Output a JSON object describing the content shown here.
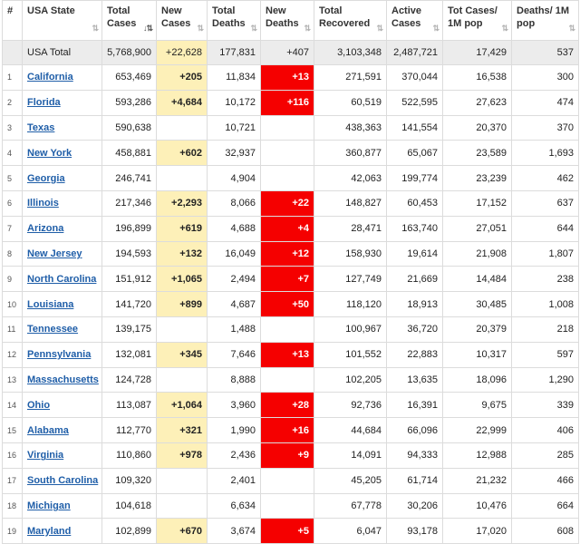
{
  "headers": [
    {
      "label": "#",
      "sortable": false
    },
    {
      "label": "USA State",
      "sortable": true
    },
    {
      "label": "Total Cases",
      "sortable": true,
      "active": true
    },
    {
      "label": "New Cases",
      "sortable": true
    },
    {
      "label": "Total Deaths",
      "sortable": true
    },
    {
      "label": "New Deaths",
      "sortable": true
    },
    {
      "label": "Total Recovered",
      "sortable": true
    },
    {
      "label": "Active Cases",
      "sortable": true
    },
    {
      "label": "Tot Cases/ 1M pop",
      "sortable": true
    },
    {
      "label": "Deaths/ 1M pop",
      "sortable": true
    }
  ],
  "sort_glyph": "⇅",
  "sort_glyph_active": "↓⇅",
  "total_row": {
    "idx": "",
    "state": "USA Total",
    "total_cases": "5,768,900",
    "new_cases": "+22,628",
    "total_deaths": "177,831",
    "new_deaths": "+407",
    "total_recovered": "3,103,348",
    "active_cases": "2,487,721",
    "cases_per_1m": "17,429",
    "deaths_per_1m": "537"
  },
  "rows": [
    {
      "idx": "1",
      "state": "California",
      "total_cases": "653,469",
      "new_cases": "+205",
      "total_deaths": "11,834",
      "new_deaths": "+13",
      "total_recovered": "271,591",
      "active_cases": "370,044",
      "cases_per_1m": "16,538",
      "deaths_per_1m": "300"
    },
    {
      "idx": "2",
      "state": "Florida",
      "total_cases": "593,286",
      "new_cases": "+4,684",
      "total_deaths": "10,172",
      "new_deaths": "+116",
      "total_recovered": "60,519",
      "active_cases": "522,595",
      "cases_per_1m": "27,623",
      "deaths_per_1m": "474"
    },
    {
      "idx": "3",
      "state": "Texas",
      "total_cases": "590,638",
      "new_cases": "",
      "total_deaths": "10,721",
      "new_deaths": "",
      "total_recovered": "438,363",
      "active_cases": "141,554",
      "cases_per_1m": "20,370",
      "deaths_per_1m": "370"
    },
    {
      "idx": "4",
      "state": "New York",
      "total_cases": "458,881",
      "new_cases": "+602",
      "total_deaths": "32,937",
      "new_deaths": "",
      "total_recovered": "360,877",
      "active_cases": "65,067",
      "cases_per_1m": "23,589",
      "deaths_per_1m": "1,693"
    },
    {
      "idx": "5",
      "state": "Georgia",
      "total_cases": "246,741",
      "new_cases": "",
      "total_deaths": "4,904",
      "new_deaths": "",
      "total_recovered": "42,063",
      "active_cases": "199,774",
      "cases_per_1m": "23,239",
      "deaths_per_1m": "462"
    },
    {
      "idx": "6",
      "state": "Illinois",
      "total_cases": "217,346",
      "new_cases": "+2,293",
      "total_deaths": "8,066",
      "new_deaths": "+22",
      "total_recovered": "148,827",
      "active_cases": "60,453",
      "cases_per_1m": "17,152",
      "deaths_per_1m": "637"
    },
    {
      "idx": "7",
      "state": "Arizona",
      "total_cases": "196,899",
      "new_cases": "+619",
      "total_deaths": "4,688",
      "new_deaths": "+4",
      "total_recovered": "28,471",
      "active_cases": "163,740",
      "cases_per_1m": "27,051",
      "deaths_per_1m": "644"
    },
    {
      "idx": "8",
      "state": "New Jersey",
      "total_cases": "194,593",
      "new_cases": "+132",
      "total_deaths": "16,049",
      "new_deaths": "+12",
      "total_recovered": "158,930",
      "active_cases": "19,614",
      "cases_per_1m": "21,908",
      "deaths_per_1m": "1,807"
    },
    {
      "idx": "9",
      "state": "North Carolina",
      "total_cases": "151,912",
      "new_cases": "+1,065",
      "total_deaths": "2,494",
      "new_deaths": "+7",
      "total_recovered": "127,749",
      "active_cases": "21,669",
      "cases_per_1m": "14,484",
      "deaths_per_1m": "238"
    },
    {
      "idx": "10",
      "state": "Louisiana",
      "total_cases": "141,720",
      "new_cases": "+899",
      "total_deaths": "4,687",
      "new_deaths": "+50",
      "total_recovered": "118,120",
      "active_cases": "18,913",
      "cases_per_1m": "30,485",
      "deaths_per_1m": "1,008"
    },
    {
      "idx": "11",
      "state": "Tennessee",
      "total_cases": "139,175",
      "new_cases": "",
      "total_deaths": "1,488",
      "new_deaths": "",
      "total_recovered": "100,967",
      "active_cases": "36,720",
      "cases_per_1m": "20,379",
      "deaths_per_1m": "218"
    },
    {
      "idx": "12",
      "state": "Pennsylvania",
      "total_cases": "132,081",
      "new_cases": "+345",
      "total_deaths": "7,646",
      "new_deaths": "+13",
      "total_recovered": "101,552",
      "active_cases": "22,883",
      "cases_per_1m": "10,317",
      "deaths_per_1m": "597"
    },
    {
      "idx": "13",
      "state": "Massachusetts",
      "total_cases": "124,728",
      "new_cases": "",
      "total_deaths": "8,888",
      "new_deaths": "",
      "total_recovered": "102,205",
      "active_cases": "13,635",
      "cases_per_1m": "18,096",
      "deaths_per_1m": "1,290"
    },
    {
      "idx": "14",
      "state": "Ohio",
      "total_cases": "113,087",
      "new_cases": "+1,064",
      "total_deaths": "3,960",
      "new_deaths": "+28",
      "total_recovered": "92,736",
      "active_cases": "16,391",
      "cases_per_1m": "9,675",
      "deaths_per_1m": "339"
    },
    {
      "idx": "15",
      "state": "Alabama",
      "total_cases": "112,770",
      "new_cases": "+321",
      "total_deaths": "1,990",
      "new_deaths": "+16",
      "total_recovered": "44,684",
      "active_cases": "66,096",
      "cases_per_1m": "22,999",
      "deaths_per_1m": "406"
    },
    {
      "idx": "16",
      "state": "Virginia",
      "total_cases": "110,860",
      "new_cases": "+978",
      "total_deaths": "2,436",
      "new_deaths": "+9",
      "total_recovered": "14,091",
      "active_cases": "94,333",
      "cases_per_1m": "12,988",
      "deaths_per_1m": "285"
    },
    {
      "idx": "17",
      "state": "South Carolina",
      "total_cases": "109,320",
      "new_cases": "",
      "total_deaths": "2,401",
      "new_deaths": "",
      "total_recovered": "45,205",
      "active_cases": "61,714",
      "cases_per_1m": "21,232",
      "deaths_per_1m": "466"
    },
    {
      "idx": "18",
      "state": "Michigan",
      "total_cases": "104,618",
      "new_cases": "",
      "total_deaths": "6,634",
      "new_deaths": "",
      "total_recovered": "67,778",
      "active_cases": "30,206",
      "cases_per_1m": "10,476",
      "deaths_per_1m": "664"
    },
    {
      "idx": "19",
      "state": "Maryland",
      "total_cases": "102,899",
      "new_cases": "+670",
      "total_deaths": "3,674",
      "new_deaths": "+5",
      "total_recovered": "6,047",
      "active_cases": "93,178",
      "cases_per_1m": "17,020",
      "deaths_per_1m": "608"
    }
  ],
  "colors": {
    "new_cases_bg": "#fdf0b8",
    "new_deaths_bg": "#f50000",
    "link": "#1f5ea8",
    "total_row_bg": "#ececec"
  }
}
